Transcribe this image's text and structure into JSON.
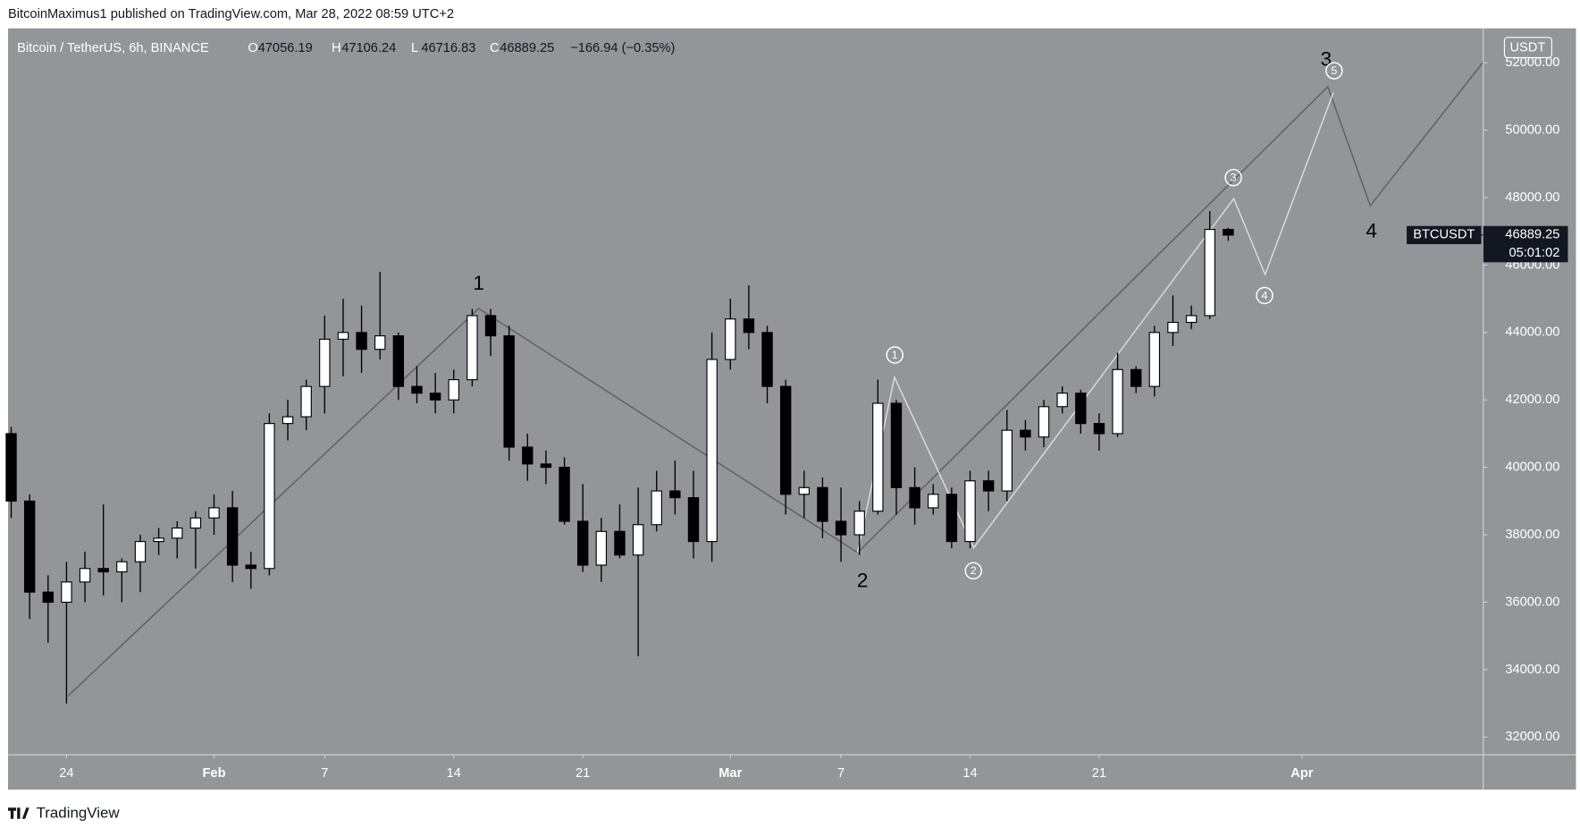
{
  "header": {
    "attribution": "BitcoinMaximus1 published on TradingView.com, Mar 28, 2022 08:59 UTC+2"
  },
  "chart_data": {
    "type": "candlestick",
    "title": "Bitcoin / TetherUS, 6h, BINANCE",
    "symbol": "BTCUSDT",
    "currency": "USDT",
    "ohlc_labels": [
      "O",
      "H",
      "L",
      "C"
    ],
    "change": "−166.94 (−0.35%)",
    "countdown": "05:01:02",
    "x": [
      21,
      22,
      23,
      24,
      25,
      26,
      27,
      28,
      29,
      30,
      31,
      32,
      33,
      34,
      35,
      36,
      37,
      38,
      39,
      40,
      41,
      42,
      43,
      44,
      45,
      46,
      47,
      48,
      49,
      50,
      51,
      52,
      53,
      54,
      55,
      56,
      57,
      58,
      59,
      60,
      61,
      62,
      63,
      64,
      65,
      66,
      67,
      68,
      69,
      70,
      71,
      72,
      73,
      74,
      75,
      76,
      77,
      78,
      79,
      80,
      81,
      82,
      83,
      84,
      85,
      86,
      87
    ],
    "open": [
      41000,
      39000,
      36300,
      36000,
      36600,
      37000,
      36900,
      37200,
      37800,
      37900,
      38200,
      38500,
      38800,
      37100,
      37000,
      41300,
      41500,
      42400,
      43800,
      44000,
      43500,
      43900,
      42400,
      42200,
      42000,
      42600,
      44500,
      43900,
      40600,
      40100,
      40000,
      38400,
      37100,
      38100,
      37400,
      38300,
      39300,
      39100,
      37800,
      43200,
      44400,
      44000,
      42400,
      39200,
      39400,
      38400,
      38000,
      38700,
      41900,
      39400,
      38800,
      39200,
      37800,
      39600,
      39300,
      41100,
      40900,
      41800,
      42200,
      41300,
      41000,
      42900,
      42400,
      44000,
      44300,
      44500,
      47056.19
    ],
    "high": [
      41200,
      39200,
      36800,
      37200,
      37500,
      38900,
      37300,
      38000,
      38200,
      38400,
      38700,
      39200,
      39300,
      37500,
      41600,
      42000,
      42600,
      44500,
      45000,
      44800,
      45800,
      44000,
      43000,
      42800,
      42900,
      44700,
      44700,
      44200,
      41000,
      40500,
      40300,
      39500,
      38500,
      38900,
      39400,
      39900,
      40200,
      39900,
      44000,
      45000,
      45400,
      44200,
      42600,
      39900,
      39700,
      39400,
      39000,
      42600,
      42000,
      40000,
      39500,
      39400,
      39900,
      39900,
      41700,
      41400,
      42000,
      42400,
      42300,
      41600,
      43400,
      43000,
      44200,
      45100,
      44800,
      47600,
      47106.24
    ],
    "low": [
      38500,
      35500,
      34800,
      33000,
      36000,
      36200,
      36000,
      36300,
      37400,
      37300,
      37000,
      38000,
      36600,
      36400,
      36800,
      40800,
      41100,
      41600,
      42700,
      42800,
      43200,
      42000,
      41900,
      41600,
      41600,
      42400,
      43300,
      40200,
      39600,
      39500,
      38300,
      36900,
      36600,
      37300,
      34400,
      38100,
      38600,
      37300,
      37200,
      42900,
      43500,
      41900,
      38600,
      38500,
      37900,
      37200,
      37400,
      38600,
      38600,
      38300,
      38600,
      37600,
      37600,
      38700,
      39000,
      40500,
      40600,
      41600,
      41000,
      40500,
      40900,
      42200,
      42100,
      43600,
      44100,
      44400,
      46716.83
    ],
    "close": [
      39000,
      36300,
      36000,
      36600,
      37000,
      36900,
      37200,
      37800,
      37900,
      38200,
      38500,
      38800,
      37100,
      37000,
      41300,
      41500,
      42400,
      43800,
      44000,
      43500,
      43900,
      42400,
      42200,
      42000,
      42600,
      44500,
      43900,
      40600,
      40100,
      40000,
      38400,
      37100,
      38100,
      37400,
      38300,
      39300,
      39100,
      37800,
      43200,
      44400,
      44000,
      42400,
      39200,
      39400,
      38400,
      38000,
      38700,
      41900,
      39400,
      38800,
      39200,
      37800,
      39600,
      39300,
      41100,
      40900,
      41800,
      42200,
      41300,
      41000,
      42900,
      42400,
      44000,
      44300,
      44500,
      47056.19,
      46889.25
    ],
    "up_color": "#ffffff",
    "down_color": "#000000",
    "xlim": [
      20.83,
      100.83
    ],
    "xticks": [
      24,
      {
        "value": 32,
        "label": "Feb"
      },
      {
        "value": 38,
        "label": "7"
      },
      {
        "value": 45,
        "label": "14"
      },
      {
        "value": 52,
        "label": "21"
      },
      {
        "value": 60,
        "label": "Mar"
      },
      {
        "value": 66,
        "label": "7"
      },
      {
        "value": 73,
        "label": "14"
      },
      {
        "value": 80,
        "label": "21"
      },
      {
        "value": 91,
        "label": "Apr"
      }
    ],
    "ylim": [
      31490,
      53020
    ],
    "yticks": [
      {
        "value": 32000,
        "label": "32000.00"
      },
      {
        "value": 34000,
        "label": "34000.00"
      },
      {
        "value": 36000,
        "label": "36000.00"
      },
      {
        "value": 38000,
        "label": "38000.00"
      },
      {
        "value": 40000,
        "label": "40000.00"
      },
      {
        "value": 42000,
        "label": "42000.00"
      },
      {
        "value": 44000,
        "label": "44000.00"
      },
      {
        "value": 46000,
        "label": "46000.00"
      },
      {
        "value": 48000,
        "label": "48000.00"
      },
      {
        "value": 50000,
        "label": "50000.00"
      },
      {
        "value": 52000,
        "label": "52000.00"
      }
    ],
    "wave_lines": [
      {
        "color": "#5d6066",
        "x": [
          24.1,
          46.35,
          66.9,
          92.4,
          94.7,
          100.8
        ],
        "y": [
          33230,
          44710,
          37470,
          51290,
          47760,
          52000
        ]
      },
      {
        "color": "#d9dbe0",
        "x": [
          66.9,
          68.9,
          73.2,
          87.3,
          89.0,
          92.7
        ],
        "y": [
          37470,
          42670,
          37620,
          47970,
          45720,
          51110
        ]
      }
    ],
    "wave_labels": [
      "1",
      "2",
      "3",
      "4"
    ],
    "subwave_labels": [
      "1",
      "2",
      "3",
      "4",
      "5"
    ]
  },
  "footer": {
    "brand": "TradingView"
  }
}
